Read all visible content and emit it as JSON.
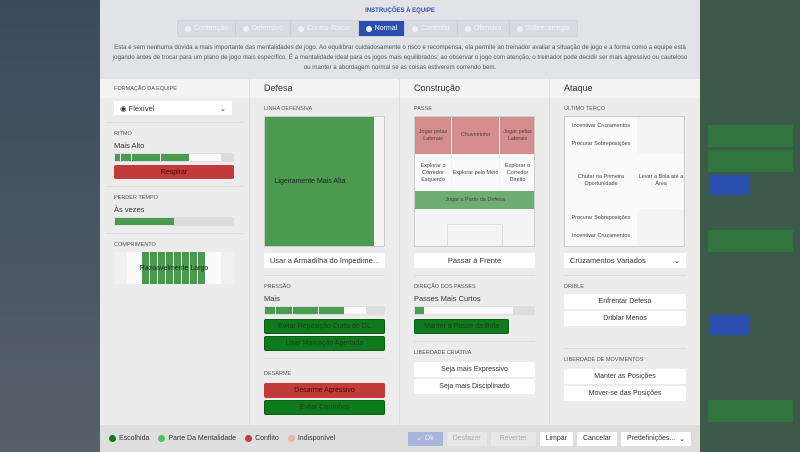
{
  "header": {
    "title": "INSTRUÇÕES À EQUIPE",
    "tabs": [
      {
        "label": "Contenção"
      },
      {
        "label": "Defensivo"
      },
      {
        "label": "Contra-Atacar"
      },
      {
        "label": "Normal",
        "active": true
      },
      {
        "label": "Controlar"
      },
      {
        "label": "Ofensiva"
      },
      {
        "label": "Sobrecarregar"
      }
    ],
    "description": "Esta é sem nenhuma dúvida a mais importante das mentalidades de jogo. Ao equilibrar cuidadosamente o risco e recompensa, ela permite ao treinador avaliar a situação de jogo e a forma como a equipe está jogando antes de trocar para um plano de jogo mais específico. É a mentalidade ideal para os jogos mais equilibrados; ao observar o jogo com atenção, o treinador pode decidir ser mais agressivo ou cauteloso ou manter a abordagem normal se as coisas estiverem correndo bem."
  },
  "columns": {
    "formation": "FORMAÇÃO DA EQUIPE",
    "defense": "Defesa",
    "build": "Construção",
    "attack": "Ataque"
  },
  "left": {
    "formation_value": "Flexível",
    "tempo_label": "RITMO",
    "tempo_value": "Mais Alto",
    "tempo_level": 0.8,
    "tempo_button": "Respirar",
    "timewaste_label": "PERDER TEMPO",
    "timewaste_value": "Às vezes",
    "timewaste_level": 0.6,
    "width_label": "COMPRIMENTO",
    "width_value": "Razoavelmente Largo"
  },
  "defense": {
    "line_label": "LINHA DEFENSIVA",
    "line_value": "Ligeiramente Mais Alta",
    "offside_button": "Usar a Armadilha do Impedime...",
    "press_label": "PRESSÃO",
    "press_value": "Mais",
    "press_level": 0.8,
    "press_buttons": [
      "Evitar Reposição Curta do GL",
      "Usar Marcação Apertada"
    ],
    "tackle_label": "DESARME",
    "tackle_buttons": [
      "Desarme Agressivo",
      "Evitar Carrinhos"
    ]
  },
  "build": {
    "passing_label": "PASSE",
    "cells": [
      "Jogar pelas Laterais",
      "Chuveirinho",
      "Jogar pelas Laterais",
      "Explorar o Corredor Esquerdo",
      "Explorar pelo Meio",
      "Explorar o Corredor Direito",
      "Jogar a Partir da Defesa"
    ],
    "forward_button": "Passar à Frente",
    "directness_label": "DIREÇÃO DOS PASSES",
    "directness_value": "Passes Mais Curtos",
    "directness_level": 0.1,
    "possession_button": "Manter a Posse da Bola",
    "creative_label": "LIBERDADE CRIATIVA",
    "creative_buttons": [
      "Seja mais Expressivo",
      "Seja mais Disciplinado"
    ]
  },
  "attack": {
    "final_label": "ÚLTIMO TERÇO",
    "cells": [
      "Incentivar Cruzamentos",
      "Procurar Sobreposições",
      "Chutar na Primeira Oportunidade",
      "Levar a Bola até a Área",
      "Procurar Sobreposições",
      "Incentivar Cruzamentos"
    ],
    "cross_select": "Cruzamentos Variados",
    "dribble_label": "DRIBLE",
    "dribble_buttons": [
      "Enfrentar Defesa",
      "Driblar Menos"
    ],
    "movement_label": "LIBERDADE DE MOVIMENTOS",
    "movement_buttons": [
      "Manter as Posições",
      "Mover-se das Posições"
    ]
  },
  "footer": {
    "legend": [
      {
        "label": "Escolhida",
        "color": "#0e7a1c"
      },
      {
        "label": "Parte Da Mentalidade",
        "color": "#4cc25a"
      },
      {
        "label": "Conflito",
        "color": "#c23a3a"
      },
      {
        "label": "Indisponível",
        "color": "#f0b0b0"
      }
    ],
    "ok": "Ok",
    "undo": "Desfazer",
    "revert": "Reverter",
    "clear": "Limpar",
    "cancel": "Cancelar",
    "presets": "Predefinições..."
  }
}
